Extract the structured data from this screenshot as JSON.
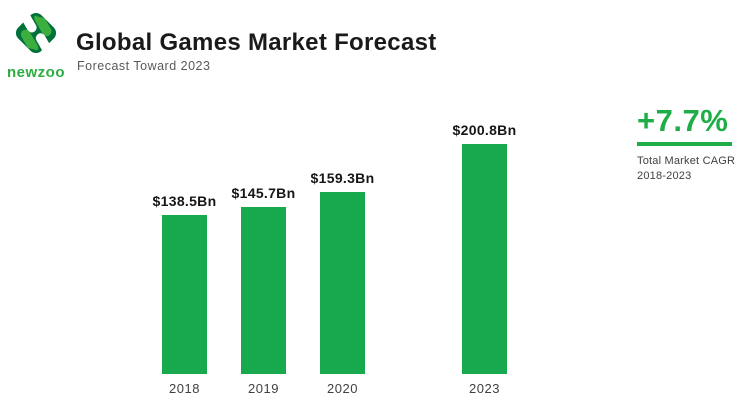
{
  "header": {
    "brand": "newzoo",
    "title": "Global Games Market Forecast",
    "subtitle": "Forecast Toward 2023"
  },
  "chart_data": {
    "type": "bar",
    "title": "Global Games Market Forecast",
    "categories": [
      "2018",
      "2019",
      "2020",
      "2023"
    ],
    "values": [
      138.5,
      145.7,
      159.3,
      200.8
    ],
    "value_labels": [
      "$138.5Bn",
      "$145.7Bn",
      "$159.3Bn",
      "$200.8Bn"
    ],
    "unit": "USD billions",
    "xlabel": "",
    "ylabel": "",
    "ylim": [
      0,
      210
    ],
    "grid": false,
    "legend": false,
    "bar_color": "#18A94E",
    "layout_hint": "no axes drawn; wider gap between 2020 and 2023 bars"
  },
  "stat": {
    "value": "+7.7%",
    "caption": [
      "Total Market CAGR",
      "2018-2023"
    ],
    "color": "#1FAD47"
  },
  "colors": {
    "background": "#FFFFFF",
    "bar_green": "#18A94E",
    "accent_green": "#1FAD47",
    "logo_dark_green": "#00713A",
    "logo_stripe_green": "#3CAD3F",
    "title_text": "#1A1A1A",
    "muted_text": "#58595B",
    "axis_label_text": "#414042"
  }
}
